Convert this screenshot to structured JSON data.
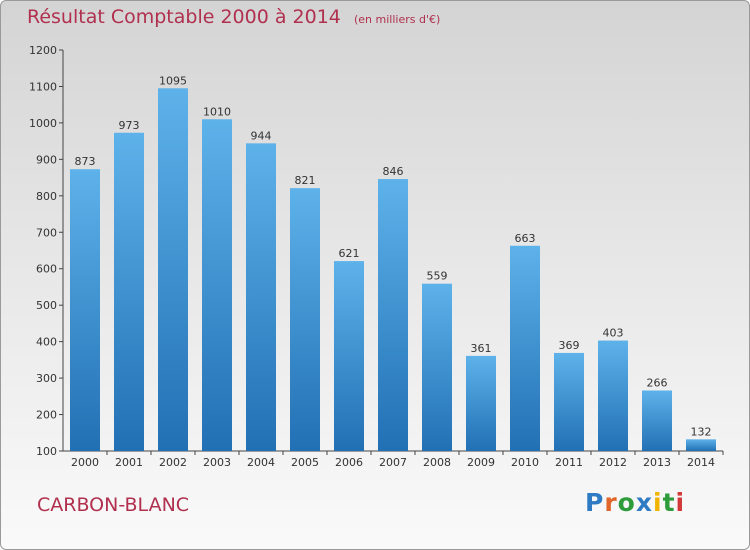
{
  "title": "Résultat Comptable 2000 à 2014",
  "subtitle": "(en milliers d'€)",
  "city": "CARBON-BLANC",
  "logo": {
    "text": "Proxiti",
    "letters": [
      {
        "char": "P",
        "color": "#2e7bc4"
      },
      {
        "char": "r",
        "color": "#e0662a"
      },
      {
        "char": "o",
        "color": "#2e9c3a"
      },
      {
        "char": "x",
        "color": "#2e7bc4"
      },
      {
        "char": "i",
        "color": "#f0b400"
      },
      {
        "char": "t",
        "color": "#2e9c3a"
      },
      {
        "char": "i",
        "color": "#d23a3a"
      }
    ]
  },
  "colors": {
    "title": "#b0304e",
    "bar_top": "#5eb2ea",
    "bar_bottom": "#2170b4",
    "axis": "#444444"
  },
  "chart_data": {
    "type": "bar",
    "title": "Résultat Comptable 2000 à 2014",
    "xlabel": "",
    "ylabel": "en milliers d'€",
    "categories": [
      "2000",
      "2001",
      "2002",
      "2003",
      "2004",
      "2005",
      "2006",
      "2007",
      "2008",
      "2009",
      "2010",
      "2011",
      "2012",
      "2013",
      "2014"
    ],
    "values": [
      873,
      973,
      1095,
      1010,
      944,
      821,
      621,
      846,
      559,
      361,
      663,
      369,
      403,
      266,
      132
    ],
    "ylim": [
      100,
      1200
    ],
    "yticks": [
      100,
      200,
      300,
      400,
      500,
      600,
      700,
      800,
      900,
      1000,
      1100,
      1200
    ],
    "grid": false
  }
}
